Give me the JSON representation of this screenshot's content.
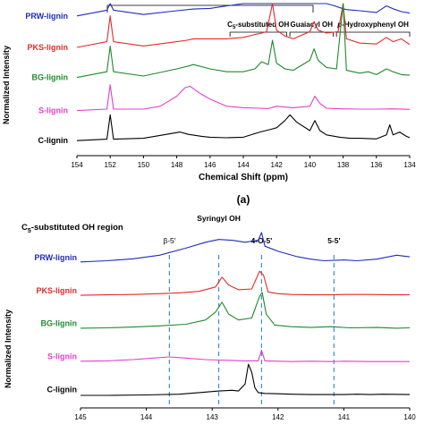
{
  "chart_data": [
    {
      "type": "line",
      "panel_label": "(a)",
      "xlabel": "Chemical Shift (ppm)",
      "ylabel": "Normalized Intensity",
      "xlim": [
        154,
        134
      ],
      "xticks": [
        154,
        152,
        150,
        148,
        146,
        144,
        142,
        140,
        138,
        136,
        134
      ],
      "reversed_x": true,
      "grid": false,
      "region_labels": [
        {
          "text": "C",
          "sub": "5",
          "rest": "-substituted OH",
          "x_from": 144.8,
          "x_to": 141.4
        },
        {
          "text": "Guaiacyl OH",
          "sub": "",
          "rest": "",
          "x_from": 141.2,
          "x_to": 138.6
        },
        {
          "text": "",
          "italic_prefix": "p",
          "rest": "-Hydroxyphenyl OH",
          "x_from": 138.4,
          "x_to": 134.0
        }
      ],
      "series": [
        {
          "name": "PRW-lignin",
          "color": "#1f2db8",
          "baseline": 0.93,
          "x": [
            154,
            152.2,
            152,
            151.8,
            150,
            148,
            147,
            146,
            145,
            144,
            143.3,
            142.9,
            142.6,
            142.25,
            142,
            141.5,
            141,
            140.5,
            140,
            139.75,
            139.5,
            139,
            138.5,
            138,
            137.8,
            137,
            136,
            135.4,
            135,
            134.5,
            134
          ],
          "y": [
            0,
            0.2,
            1.1,
            0.2,
            0.05,
            0.18,
            0.24,
            0.26,
            0.35,
            0.6,
            1.15,
            1.4,
            1.0,
            2.2,
            0.9,
            0.55,
            0.45,
            0.6,
            1.1,
            1.4,
            1.0,
            0.6,
            0.35,
            0.25,
            0.22,
            0.18,
            0.12,
            0.35,
            0.25,
            0.15,
            0.1
          ]
        },
        {
          "name": "PKS-lignin",
          "color": "#e22b2b",
          "baseline": 0.72,
          "x": [
            154,
            152.2,
            152,
            151.8,
            150,
            148,
            147.4,
            147,
            146,
            145,
            144,
            143.3,
            142.9,
            142.6,
            142.25,
            142,
            141.5,
            141,
            140,
            139.75,
            139.5,
            139,
            138.3,
            138,
            137.8,
            137,
            136,
            135.4,
            135,
            134.5,
            134
          ],
          "y": [
            0,
            0.2,
            1.1,
            0.2,
            0.05,
            0.2,
            0.25,
            0.3,
            0.3,
            0.3,
            0.35,
            0.45,
            0.5,
            0.55,
            1.6,
            0.6,
            0.4,
            0.3,
            0.55,
            0.9,
            0.6,
            0.5,
            0.55,
            2.4,
            0.3,
            0.15,
            0.12,
            0.35,
            0.2,
            0.3,
            0.1
          ]
        },
        {
          "name": "BG-lignin",
          "color": "#1e8a2c",
          "baseline": 0.52,
          "x": [
            154,
            152.2,
            152,
            151.8,
            150,
            148,
            147.3,
            147,
            146,
            145,
            144,
            143.3,
            142.9,
            142.5,
            142.25,
            142,
            141.5,
            141,
            140,
            139.75,
            139.5,
            139,
            138.4,
            138,
            137.8,
            137,
            136.5,
            136,
            135.4,
            135,
            134.5,
            134
          ],
          "y": [
            0,
            0.2,
            1.1,
            0.2,
            0.05,
            0.3,
            0.4,
            0.45,
            0.3,
            0.2,
            0.2,
            0.3,
            0.55,
            0.45,
            1.3,
            0.5,
            0.3,
            0.25,
            0.6,
            1.0,
            0.6,
            0.35,
            0.3,
            3.0,
            0.25,
            0.15,
            0.2,
            0.1,
            0.3,
            0.2,
            0.1,
            0.08
          ]
        },
        {
          "name": "S-lignin",
          "color": "#e040c8",
          "baseline": 0.3,
          "x": [
            154,
            152.2,
            152,
            151.8,
            150,
            149,
            148,
            147.5,
            147.2,
            146.6,
            146,
            145,
            144,
            143,
            142.5,
            142,
            141,
            140,
            139.7,
            139.4,
            139,
            138,
            137,
            136,
            135,
            134
          ],
          "y": [
            0,
            0.05,
            0.9,
            0.05,
            0.05,
            0.15,
            0.5,
            0.8,
            0.85,
            0.6,
            0.4,
            0.15,
            0.1,
            0.08,
            0.07,
            0.15,
            0.1,
            0.15,
            0.5,
            0.25,
            0.08,
            0.06,
            0.05,
            0.05,
            0.06,
            0.04
          ]
        },
        {
          "name": "C-lignin",
          "color": "#000000",
          "baseline": 0.1,
          "x": [
            154,
            152.2,
            152,
            151.8,
            150,
            148.3,
            147.8,
            147.3,
            146.5,
            146,
            145,
            144,
            143,
            142.3,
            142,
            141.5,
            141.2,
            140.8,
            140,
            139.7,
            139.4,
            139,
            138.2,
            137.6,
            137,
            136,
            135.4,
            135.2,
            135,
            134.6,
            134.2,
            134
          ],
          "y": [
            0,
            0.05,
            0.9,
            0.05,
            0.08,
            0.25,
            0.3,
            0.22,
            0.15,
            0.12,
            0.1,
            0.12,
            0.3,
            0.4,
            0.45,
            0.7,
            0.9,
            0.65,
            0.35,
            0.7,
            0.35,
            0.2,
            0.12,
            0.08,
            0.08,
            0.06,
            0.2,
            0.55,
            0.2,
            0.3,
            0.15,
            0.1
          ]
        }
      ]
    },
    {
      "type": "line",
      "title": "C",
      "title_sub": "5",
      "title_rest": "-substituted OH region",
      "xlabel": "",
      "ylabel": "Normalized Intensity",
      "xlim": [
        145,
        140
      ],
      "xticks": [
        145,
        144,
        143,
        142,
        141,
        140
      ],
      "reversed_x": true,
      "grid": false,
      "reference_lines": [
        {
          "label": "β-5'",
          "x": 143.65
        },
        {
          "label": "Syringyl OH",
          "x": 142.9
        },
        {
          "label": "4-O-5'",
          "x": 142.25
        },
        {
          "label": "5-5'",
          "x": 141.15
        }
      ],
      "series": [
        {
          "name": "PRW-lignin",
          "color": "#1f2db8",
          "baseline": 0.83,
          "x": [
            145,
            144.6,
            144.2,
            143.8,
            143.4,
            143.1,
            142.9,
            142.7,
            142.5,
            142.3,
            142.25,
            142.2,
            142.0,
            141.7,
            141.5,
            141.3,
            141.0,
            140.8,
            140.5,
            140.2,
            140.0
          ],
          "y": [
            0.05,
            0.08,
            0.13,
            0.22,
            0.4,
            0.55,
            0.62,
            0.6,
            0.55,
            0.6,
            0.95,
            0.45,
            0.32,
            0.18,
            0.12,
            0.08,
            0.1,
            0.08,
            0.12,
            0.22,
            0.18
          ]
        },
        {
          "name": "PKS-lignin",
          "color": "#e22b2b",
          "baseline": 0.64,
          "x": [
            145,
            144.6,
            144.2,
            143.8,
            143.5,
            143.2,
            142.95,
            142.85,
            142.75,
            142.6,
            142.4,
            142.28,
            142.22,
            142.15,
            142.0,
            141.8,
            141.5,
            141.2,
            141.0,
            140.6,
            140.3,
            140.0
          ],
          "y": [
            0.04,
            0.05,
            0.06,
            0.08,
            0.1,
            0.14,
            0.25,
            0.5,
            0.3,
            0.18,
            0.2,
            0.65,
            0.55,
            0.12,
            0.08,
            0.06,
            0.05,
            0.05,
            0.06,
            0.06,
            0.05,
            0.05
          ]
        },
        {
          "name": "BG-lignin",
          "color": "#1e8a2c",
          "baseline": 0.45,
          "x": [
            145,
            144.6,
            144.2,
            143.8,
            143.4,
            143.1,
            142.95,
            142.85,
            142.75,
            142.6,
            142.4,
            142.28,
            142.24,
            142.18,
            142.05,
            141.8,
            141.5,
            141.2,
            140.9,
            140.5,
            140.2,
            140.0
          ],
          "y": [
            0.04,
            0.05,
            0.07,
            0.1,
            0.14,
            0.25,
            0.45,
            0.7,
            0.4,
            0.25,
            0.3,
            0.85,
            0.95,
            0.4,
            0.12,
            0.08,
            0.06,
            0.08,
            0.05,
            0.06,
            0.04,
            0.05
          ]
        },
        {
          "name": "S-lignin",
          "color": "#e040c8",
          "baseline": 0.26,
          "x": [
            145,
            144.6,
            144.2,
            143.9,
            143.65,
            143.4,
            143.1,
            142.9,
            142.7,
            142.5,
            142.3,
            142.25,
            142.2,
            142.0,
            141.8,
            141.5,
            141.2,
            141.0,
            140.6,
            140.3,
            140.0
          ],
          "y": [
            0.04,
            0.05,
            0.08,
            0.12,
            0.15,
            0.12,
            0.08,
            0.07,
            0.06,
            0.05,
            0.05,
            0.32,
            0.05,
            0.04,
            0.03,
            0.04,
            0.03,
            0.04,
            0.03,
            0.03,
            0.03
          ]
        },
        {
          "name": "C-lignin",
          "color": "#000000",
          "baseline": 0.07,
          "x": [
            145,
            144.6,
            144.0,
            143.5,
            143.2,
            142.9,
            142.7,
            142.6,
            142.5,
            142.45,
            142.4,
            142.35,
            142.3,
            142.2,
            142.0,
            141.8,
            141.5,
            141.0,
            140.8,
            140.6,
            140.4,
            140.0
          ],
          "y": [
            0.01,
            0.01,
            0.02,
            0.04,
            0.08,
            0.12,
            0.14,
            0.12,
            0.3,
            0.8,
            0.6,
            0.2,
            0.08,
            0.06,
            0.05,
            0.04,
            0.03,
            0.03,
            0.04,
            0.03,
            0.04,
            0.03
          ]
        }
      ]
    }
  ]
}
